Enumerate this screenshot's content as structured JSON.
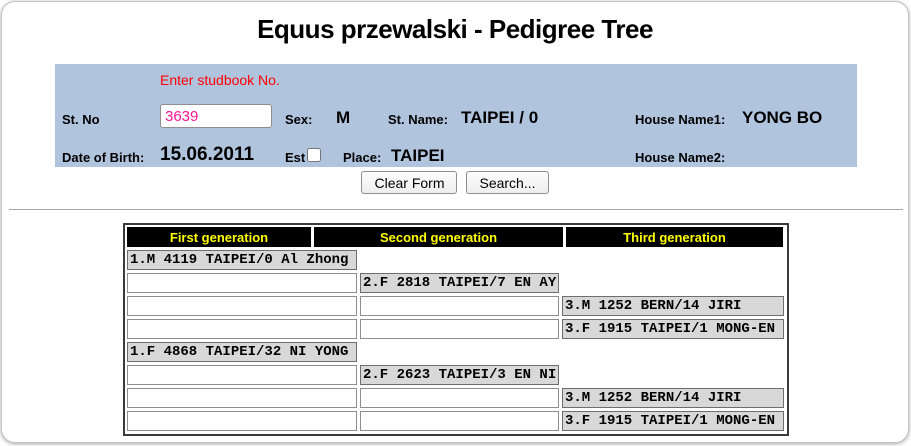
{
  "title": "Equus przewalski - Pedigree Tree",
  "form": {
    "hint": "Enter studbook No.",
    "st_no_label": "St. No",
    "st_no_value": "3639",
    "sex_label": "Sex:",
    "sex_value": "M",
    "st_name_label": "St. Name:",
    "st_name_value": "TAIPEI / 0",
    "house_name1_label": "House Name1:",
    "house_name1_value": "YONG BO",
    "dob_label": "Date of Birth:",
    "dob_value": "15.06.2011",
    "est_label": "Est",
    "est_checked": false,
    "place_label": "Place:",
    "place_value": "TAIPEI",
    "house_name2_label": "House Name2:",
    "house_name2_value": ""
  },
  "buttons": {
    "clear": "Clear Form",
    "search": "Search..."
  },
  "pedigree": {
    "headers": [
      "First generation",
      "Second generation",
      "Third generation"
    ],
    "rows": [
      {
        "col": 1,
        "text": "1.M 4119 TAIPEI/0 Al Zhong"
      },
      {
        "col": 2,
        "text": "2.F 2818 TAIPEI/7 EN AY"
      },
      {
        "col": 3,
        "text": "3.M 1252 BERN/14 JIRI"
      },
      {
        "col": 3,
        "text": "3.F 1915 TAIPEI/1 MONG-EN"
      },
      {
        "col": 1,
        "text": "1.F 4868 TAIPEI/32 NI YONG"
      },
      {
        "col": 2,
        "text": "2.F 2623 TAIPEI/3 EN NI"
      },
      {
        "col": 3,
        "text": "3.M 1252 BERN/14 JIRI"
      },
      {
        "col": 3,
        "text": "3.F 1915 TAIPEI/1 MONG-EN"
      }
    ]
  },
  "colors": {
    "panel_bg": "#b0c4de",
    "hint_red": "#ff0000",
    "input_text_pink": "#ff1493",
    "header_bg": "#000000",
    "header_text": "#ffff00",
    "filled_cell_bg": "#d8d8d8"
  }
}
